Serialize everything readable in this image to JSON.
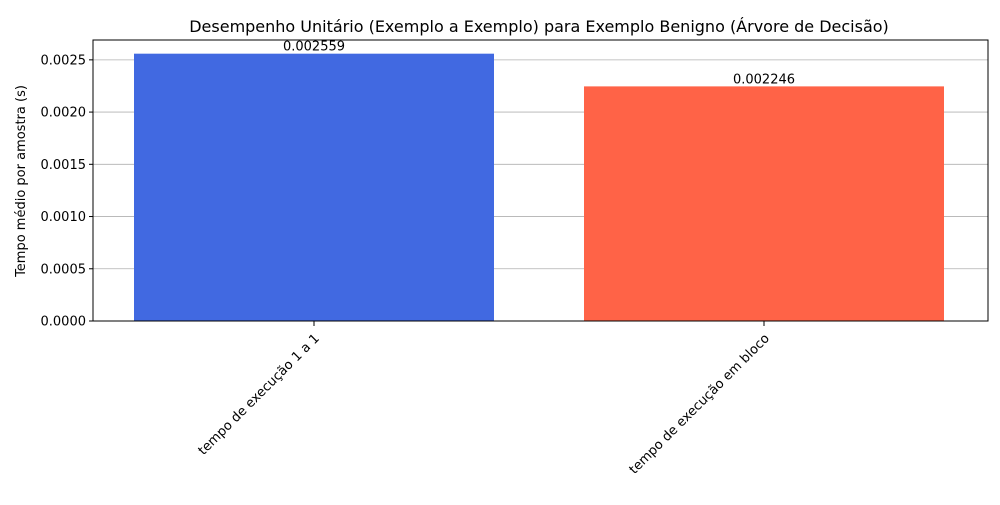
{
  "chart_data": {
    "type": "bar",
    "title": "Desempenho Unitário (Exemplo a Exemplo) para Exemplo Benigno (Árvore de Decisão)",
    "xlabel": "",
    "ylabel": "Tempo médio por amostra (s)",
    "categories": [
      "tempo de execução 1 a 1",
      "tempo de execução em bloco"
    ],
    "values": [
      0.002559,
      0.002246
    ],
    "value_labels": [
      "0.002559",
      "0.002246"
    ],
    "colors": [
      "#4169E1",
      "#FF6347"
    ],
    "ylim": [
      0,
      0.00269
    ],
    "yticks": [
      0,
      0.0005,
      0.001,
      0.0015,
      0.002,
      0.0025
    ],
    "ytick_labels": [
      "0.0000",
      "0.0005",
      "0.0010",
      "0.0015",
      "0.0020",
      "0.0025"
    ],
    "grid": "y",
    "xtick_rotation_deg": 45
  }
}
